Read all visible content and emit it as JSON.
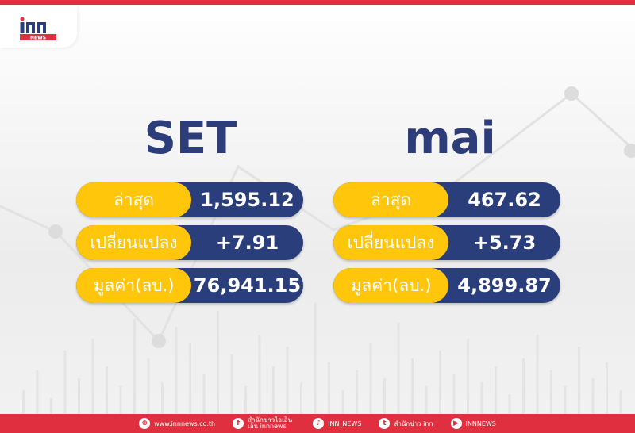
{
  "brand": {
    "logo_text": "inn",
    "logo_sub": "NEWS",
    "accent": "#e0303f",
    "navy": "#2b3e7c",
    "yellow": "#ffc60b"
  },
  "markets": [
    {
      "title": "SET",
      "rows": [
        {
          "label": "ล่าสุด",
          "value": "1,595.12"
        },
        {
          "label": "เปลี่ยนแปลง",
          "value": "+7.91"
        },
        {
          "label": "มูลค่า(ลบ.)",
          "value": "76,941.15"
        }
      ]
    },
    {
      "title": "mai",
      "rows": [
        {
          "label": "ล่าสุด",
          "value": "467.62"
        },
        {
          "label": "เปลี่ยนแปลง",
          "value": "+5.73"
        },
        {
          "label": "มูลค่า(ลบ.)",
          "value": "4,899.87"
        }
      ]
    }
  ],
  "footer": [
    {
      "icon": "globe-icon",
      "text": "www.innnews.co.th"
    },
    {
      "icon": "facebook-icon",
      "text": "สำนักข่าวไอเอ็นเอ็น innnews"
    },
    {
      "icon": "tiktok-icon",
      "text": "INN_NEWS"
    },
    {
      "icon": "twitter-icon",
      "text": "สำนักข่าว inn"
    },
    {
      "icon": "youtube-icon",
      "text": "INNNEWS"
    }
  ]
}
